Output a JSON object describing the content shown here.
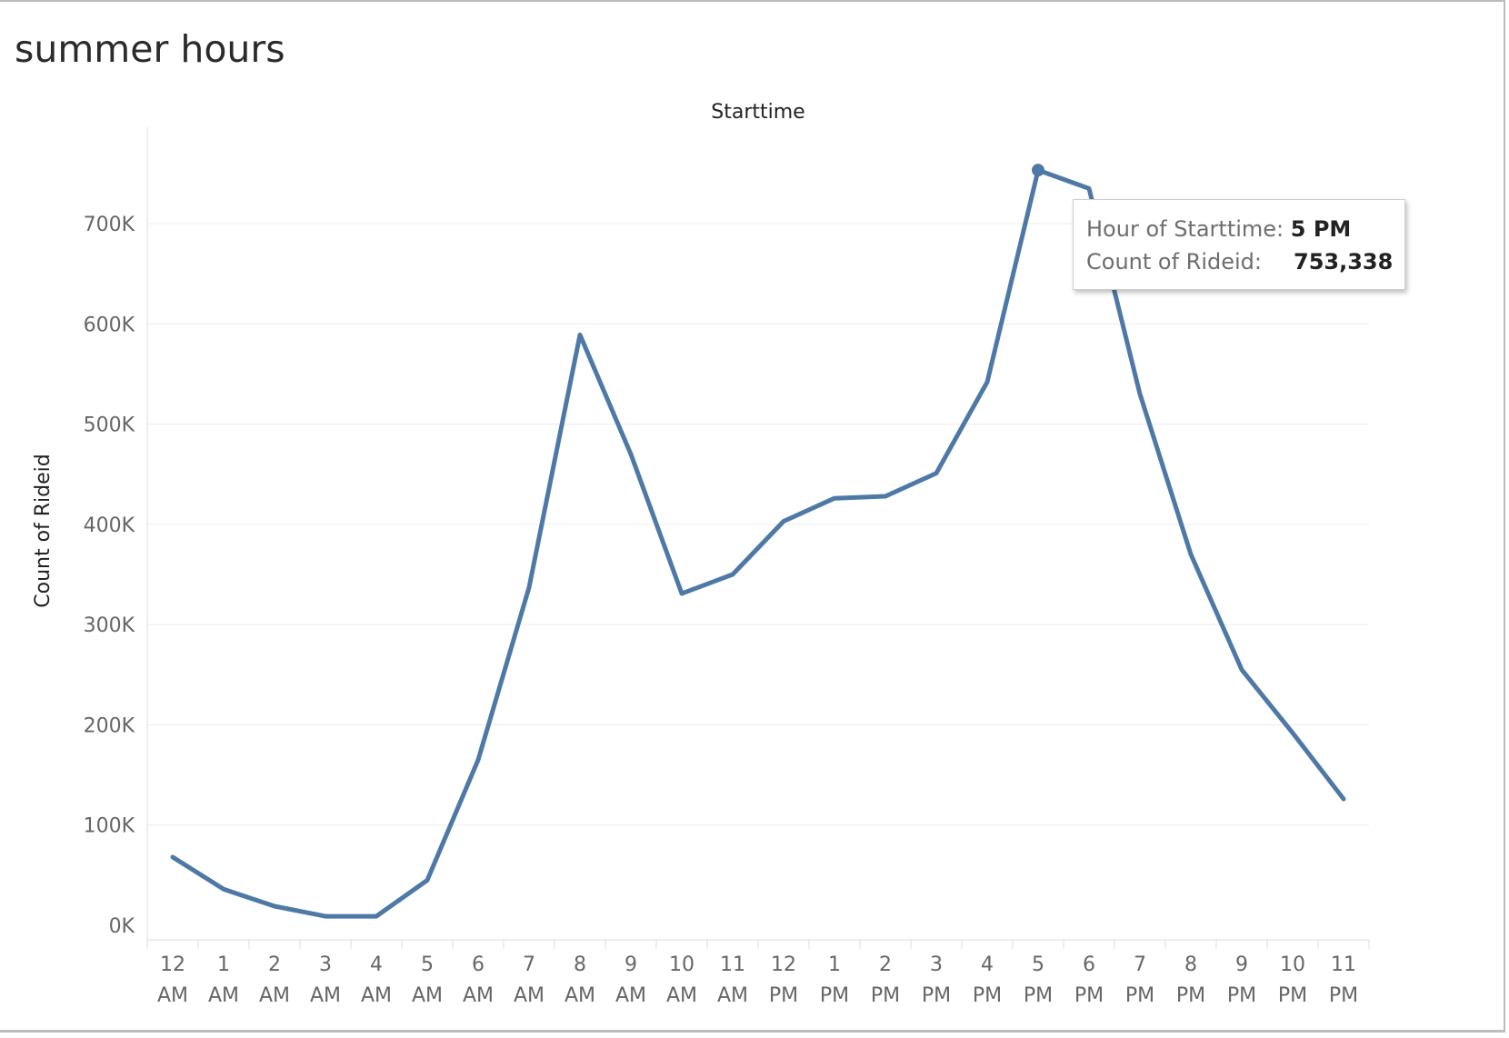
{
  "page": {
    "title": "summer hours"
  },
  "tooltip": {
    "hour_label": "Hour of Starttime:",
    "hour_value": "5 PM",
    "count_label": "Count of Rideid:",
    "count_value": "753,338"
  },
  "colors": {
    "line": "#4e79a7",
    "grid": "#ececec",
    "axis": "#dddddd"
  },
  "chart_data": {
    "type": "line",
    "title": "Starttime",
    "xlabel": "",
    "ylabel": "Count of Rideid",
    "ylim": [
      0,
      800000
    ],
    "grid": true,
    "yticks": [
      {
        "value": 0,
        "label": "0K"
      },
      {
        "value": 100000,
        "label": "100K"
      },
      {
        "value": 200000,
        "label": "200K"
      },
      {
        "value": 300000,
        "label": "300K"
      },
      {
        "value": 400000,
        "label": "400K"
      },
      {
        "value": 500000,
        "label": "500K"
      },
      {
        "value": 600000,
        "label": "600K"
      },
      {
        "value": 700000,
        "label": "700K"
      }
    ],
    "categories": [
      [
        "12",
        "AM"
      ],
      [
        "1",
        "AM"
      ],
      [
        "2",
        "AM"
      ],
      [
        "3",
        "AM"
      ],
      [
        "4",
        "AM"
      ],
      [
        "5",
        "AM"
      ],
      [
        "6",
        "AM"
      ],
      [
        "7",
        "AM"
      ],
      [
        "8",
        "AM"
      ],
      [
        "9",
        "AM"
      ],
      [
        "10",
        "AM"
      ],
      [
        "11",
        "AM"
      ],
      [
        "12",
        "PM"
      ],
      [
        "1",
        "PM"
      ],
      [
        "2",
        "PM"
      ],
      [
        "3",
        "PM"
      ],
      [
        "4",
        "PM"
      ],
      [
        "5",
        "PM"
      ],
      [
        "6",
        "PM"
      ],
      [
        "7",
        "PM"
      ],
      [
        "8",
        "PM"
      ],
      [
        "9",
        "PM"
      ],
      [
        "10",
        "PM"
      ],
      [
        "11",
        "PM"
      ]
    ],
    "series": [
      {
        "values": [
          68000,
          36000,
          19000,
          9000,
          9000,
          45000,
          165000,
          337000,
          589000,
          470000,
          331000,
          350000,
          403000,
          426000,
          428000,
          451000,
          542000,
          753338,
          735000,
          530000,
          370000,
          255000,
          192000,
          126000
        ]
      }
    ],
    "highlight_index": 17
  }
}
